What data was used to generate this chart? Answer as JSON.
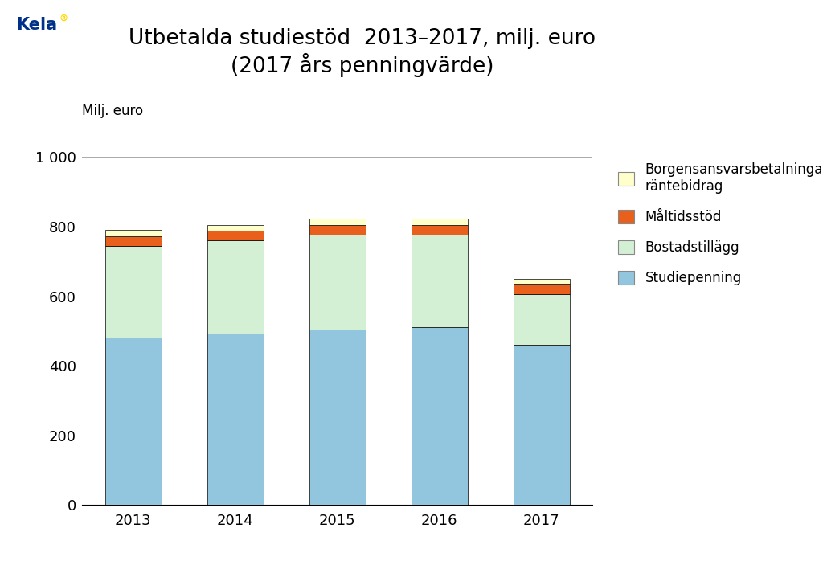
{
  "title_line1": "Utbetalda studiestöd  2013–2017, milj. euro",
  "title_line2": "(2017 års penningvärde)",
  "ylabel": "Milj. euro",
  "years": [
    2013,
    2014,
    2015,
    2016,
    2017
  ],
  "series": {
    "Studiepenning": [
      480,
      492,
      505,
      510,
      461
    ],
    "Bostadstillägg": [
      265,
      268,
      272,
      268,
      146
    ],
    "Måltidsstöd": [
      28,
      28,
      28,
      27,
      28
    ],
    "Borgensansvarsbetalningar,\nräntebidrag": [
      17,
      17,
      17,
      17,
      15
    ]
  },
  "colors": {
    "Studiepenning": "#92C5DE",
    "Bostadstillägg": "#D4F0D4",
    "Måltidsstöd": "#E8601C",
    "Borgensansvarsbetalningar,\nräntebidrag": "#FFFFCC"
  },
  "ylim": [
    0,
    1000
  ],
  "yticks": [
    0,
    200,
    400,
    600,
    800,
    1000
  ],
  "ytick_labels": [
    "0",
    "200",
    "400",
    "600",
    "800",
    "1 000"
  ],
  "background_color": "#FFFFFF",
  "bar_width": 0.55,
  "kela_blue": "#003087",
  "kela_gold": "#FFD700",
  "title_fontsize": 19,
  "axis_label_fontsize": 12,
  "tick_fontsize": 13,
  "legend_fontsize": 12
}
